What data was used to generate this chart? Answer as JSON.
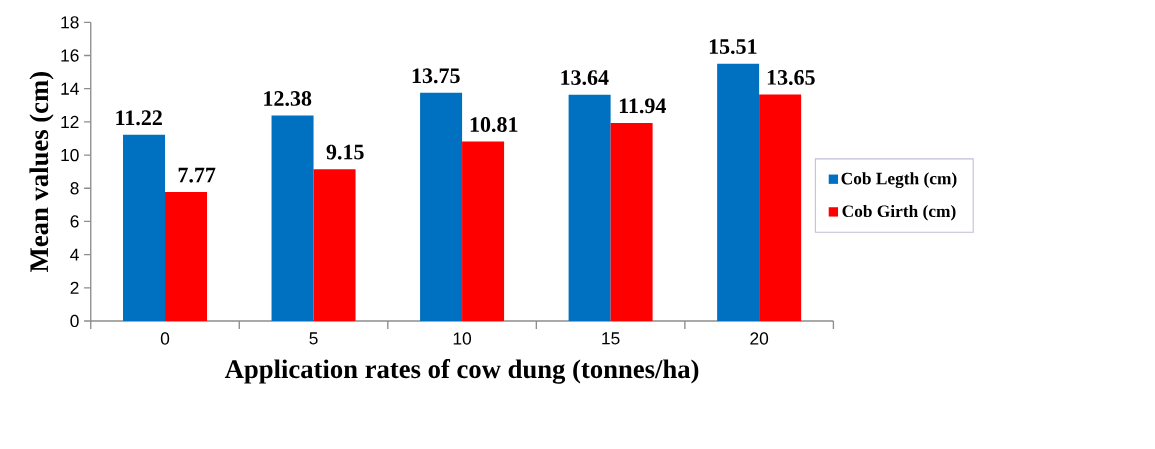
{
  "chart_data": {
    "type": "bar",
    "xlabel": "Application rates of  cow dung (tonnes/ha)",
    "ylabel": "Mean values (cm)",
    "categories": [
      "0",
      "5",
      "10",
      "15",
      "20"
    ],
    "series": [
      {
        "name": "Cob Legth (cm)",
        "color": "#0070c0",
        "values": [
          11.22,
          12.38,
          13.75,
          13.64,
          15.51
        ]
      },
      {
        "name": "Cob Girth (cm)",
        "color": "#ff0000",
        "values": [
          7.77,
          9.15,
          10.81,
          11.94,
          13.65
        ]
      }
    ],
    "ylim": [
      0,
      18
    ],
    "yticks": [
      0,
      2,
      4,
      6,
      8,
      10,
      12,
      14,
      16,
      18
    ],
    "grid": false,
    "legend": "right",
    "data_labels": true
  }
}
